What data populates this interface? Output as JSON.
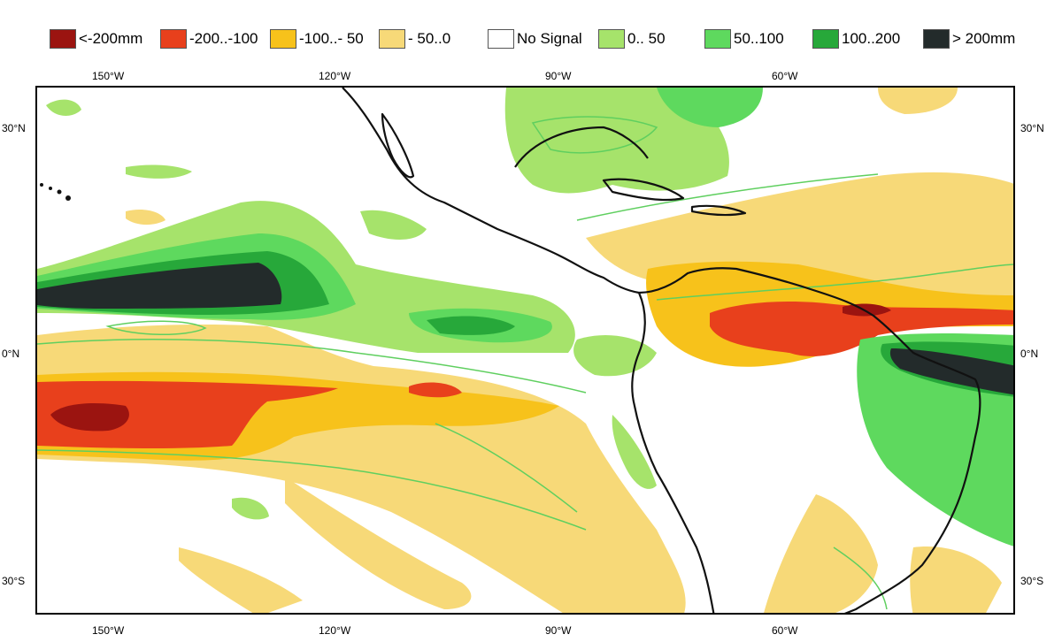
{
  "legend": [
    {
      "label": "<-200mm",
      "color": "#9b1410"
    },
    {
      "label": "-200..-100",
      "color": "#e8401c"
    },
    {
      "label": "-100..- 50",
      "color": "#f7c21b"
    },
    {
      "label": "- 50..0",
      "color": "#f7d978"
    },
    {
      "label": "No Signal",
      "color": "#ffffff"
    },
    {
      "label": "0.. 50",
      "color": "#a6e36b"
    },
    {
      "label": "50..100",
      "color": "#5ed95e"
    },
    {
      "label": "100..200",
      "color": "#27a83a"
    },
    {
      "label": "> 200mm",
      "color": "#232b2b"
    }
  ],
  "axes": {
    "lon_top": [
      "150°W",
      "120°W",
      "90°W",
      "60°W"
    ],
    "lon_bottom": [
      "150°W",
      "120°W",
      "90°W",
      "60°W"
    ],
    "lat_left": [
      "30°N",
      "0°N",
      "30°S"
    ],
    "lat_right": [
      "30°N",
      "0°N",
      "30°S"
    ]
  },
  "colors": {
    "coastline": "#111111",
    "contour": "#5fcf5f"
  }
}
